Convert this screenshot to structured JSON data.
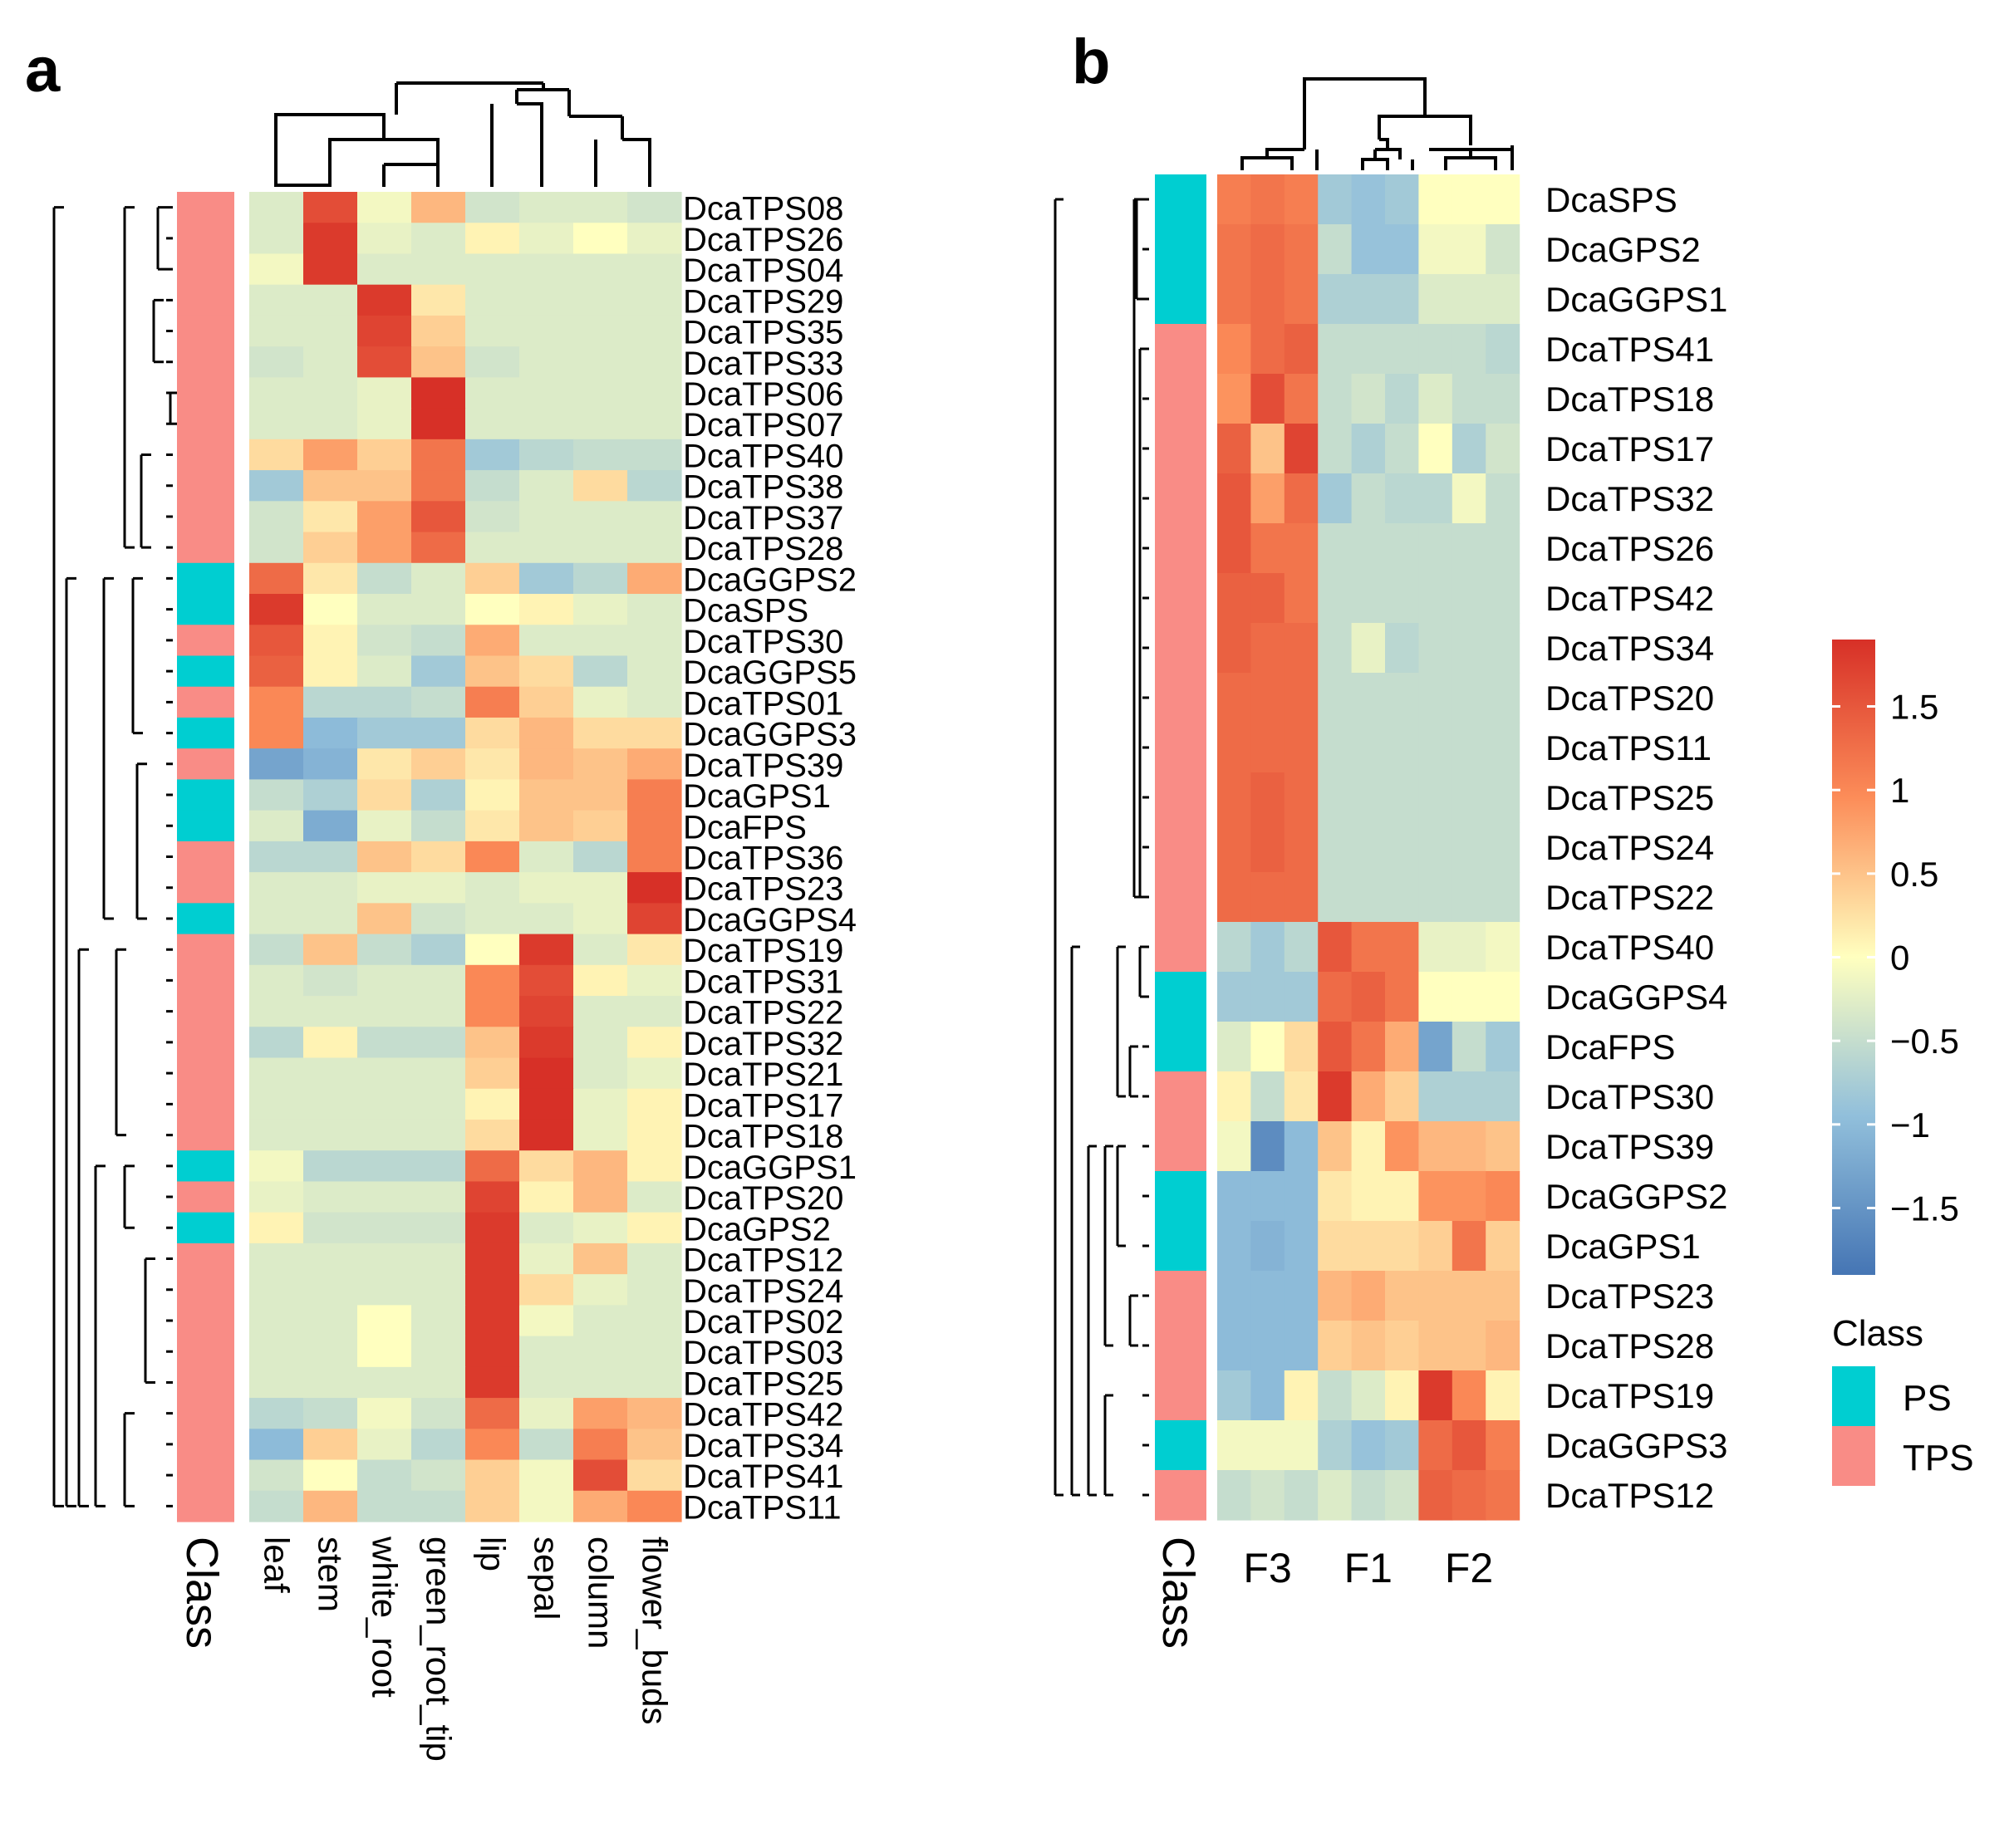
{
  "panels": {
    "a": {
      "letter": "a"
    },
    "b": {
      "letter": "b"
    }
  },
  "legend": {
    "class_title": "Class",
    "entries": [
      {
        "label": "PS",
        "color": "#00CED1"
      },
      {
        "label": "TPS",
        "color": "#F98C86"
      }
    ],
    "colorbar_ticks": [
      "1.5",
      "1",
      "0.5",
      "0",
      "−0.5",
      "−1",
      "−1.5"
    ],
    "colorbar_tick_values": [
      1.5,
      1,
      0.5,
      0,
      -0.5,
      -1,
      -1.5
    ],
    "colorbar_range": [
      -1.9,
      1.9
    ],
    "colors": {
      "low": "#4575B4",
      "mid": "#FFFFBF",
      "high": "#D73027"
    }
  },
  "chart_data": [
    {
      "type": "heatmap",
      "panel": "a",
      "class_label": "Class",
      "columns": [
        "leaf",
        "stem",
        "white_root",
        "green_root_tip",
        "lip",
        "sepal",
        "column",
        "flower_buds"
      ],
      "rows": [
        "DcaTPS08",
        "DcaTPS26",
        "DcaTPS04",
        "DcaTPS29",
        "DcaTPS35",
        "DcaTPS33",
        "DcaTPS06",
        "DcaTPS07",
        "DcaTPS40",
        "DcaTPS38",
        "DcaTPS37",
        "DcaTPS28",
        "DcaGGPS2",
        "DcaSPS",
        "DcaTPS30",
        "DcaGGPS5",
        "DcaTPS01",
        "DcaGGPS3",
        "DcaTPS39",
        "DcaGPS1",
        "DcaFPS",
        "DcaTPS36",
        "DcaTPS23",
        "DcaGGPS4",
        "DcaTPS19",
        "DcaTPS31",
        "DcaTPS22",
        "DcaTPS32",
        "DcaTPS21",
        "DcaTPS17",
        "DcaTPS18",
        "DcaGGPS1",
        "DcaTPS20",
        "DcaGPS2",
        "DcaTPS12",
        "DcaTPS24",
        "DcaTPS02",
        "DcaTPS03",
        "DcaTPS25",
        "DcaTPS42",
        "DcaTPS34",
        "DcaTPS41",
        "DcaTPS11"
      ],
      "row_class": [
        "TPS",
        "TPS",
        "TPS",
        "TPS",
        "TPS",
        "TPS",
        "TPS",
        "TPS",
        "TPS",
        "TPS",
        "TPS",
        "TPS",
        "PS",
        "PS",
        "TPS",
        "PS",
        "TPS",
        "PS",
        "TPS",
        "PS",
        "PS",
        "TPS",
        "TPS",
        "PS",
        "TPS",
        "TPS",
        "TPS",
        "TPS",
        "TPS",
        "TPS",
        "TPS",
        "PS",
        "TPS",
        "PS",
        "TPS",
        "TPS",
        "TPS",
        "TPS",
        "TPS",
        "TPS",
        "TPS",
        "TPS",
        "TPS"
      ],
      "values": [
        [
          -0.3,
          1.6,
          -0.1,
          0.6,
          -0.4,
          -0.3,
          -0.3,
          -0.4
        ],
        [
          -0.3,
          1.8,
          -0.2,
          -0.3,
          0.1,
          -0.2,
          0.0,
          -0.2
        ],
        [
          -0.1,
          1.8,
          -0.3,
          -0.3,
          -0.3,
          -0.3,
          -0.3,
          -0.3
        ],
        [
          -0.3,
          -0.3,
          1.8,
          0.2,
          -0.3,
          -0.3,
          -0.3,
          -0.3
        ],
        [
          -0.3,
          -0.3,
          1.7,
          0.4,
          -0.3,
          -0.3,
          -0.3,
          -0.3
        ],
        [
          -0.4,
          -0.3,
          1.6,
          0.5,
          -0.4,
          -0.3,
          -0.3,
          -0.3
        ],
        [
          -0.3,
          -0.3,
          -0.2,
          1.9,
          -0.3,
          -0.3,
          -0.3,
          -0.3
        ],
        [
          -0.3,
          -0.3,
          -0.2,
          1.9,
          -0.3,
          -0.3,
          -0.3,
          -0.3
        ],
        [
          0.3,
          0.8,
          0.4,
          1.2,
          -0.8,
          -0.6,
          -0.5,
          -0.5
        ],
        [
          -0.8,
          0.5,
          0.5,
          1.2,
          -0.5,
          -0.3,
          0.3,
          -0.6
        ],
        [
          -0.4,
          0.2,
          0.8,
          1.5,
          -0.4,
          -0.3,
          -0.3,
          -0.3
        ],
        [
          -0.4,
          0.4,
          0.8,
          1.3,
          -0.3,
          -0.3,
          -0.3,
          -0.3
        ],
        [
          1.3,
          0.2,
          -0.5,
          -0.3,
          0.4,
          -0.8,
          -0.6,
          0.7
        ],
        [
          1.8,
          0.0,
          -0.3,
          -0.3,
          0.0,
          0.1,
          -0.2,
          -0.3
        ],
        [
          1.5,
          0.1,
          -0.4,
          -0.5,
          0.7,
          -0.3,
          -0.3,
          -0.3
        ],
        [
          1.4,
          0.1,
          -0.3,
          -0.8,
          0.5,
          0.3,
          -0.6,
          -0.3
        ],
        [
          1.0,
          -0.6,
          -0.6,
          -0.5,
          1.1,
          0.4,
          -0.2,
          -0.3
        ],
        [
          1.0,
          -1.0,
          -0.8,
          -0.8,
          0.3,
          0.6,
          0.3,
          0.3
        ],
        [
          -1.3,
          -1.1,
          0.2,
          0.4,
          0.2,
          0.6,
          0.5,
          0.7
        ],
        [
          -0.5,
          -0.7,
          0.3,
          -0.7,
          0.1,
          0.5,
          0.5,
          1.1
        ],
        [
          -0.3,
          -1.2,
          -0.2,
          -0.5,
          0.2,
          0.5,
          0.4,
          1.1
        ],
        [
          -0.6,
          -0.6,
          0.5,
          0.3,
          1.0,
          -0.3,
          -0.6,
          1.1
        ],
        [
          -0.3,
          -0.3,
          -0.2,
          -0.2,
          -0.3,
          -0.2,
          -0.2,
          1.9
        ],
        [
          -0.3,
          -0.3,
          0.5,
          -0.4,
          -0.3,
          -0.3,
          -0.2,
          1.7
        ],
        [
          -0.5,
          0.5,
          -0.5,
          -0.7,
          0.0,
          1.8,
          -0.3,
          0.2
        ],
        [
          -0.3,
          -0.4,
          -0.3,
          -0.3,
          1.0,
          1.6,
          0.1,
          -0.2
        ],
        [
          -0.3,
          -0.3,
          -0.3,
          -0.3,
          1.0,
          1.7,
          -0.3,
          -0.3
        ],
        [
          -0.6,
          0.1,
          -0.5,
          -0.5,
          0.5,
          1.8,
          -0.3,
          0.1
        ],
        [
          -0.3,
          -0.3,
          -0.3,
          -0.3,
          0.4,
          1.9,
          -0.3,
          -0.2
        ],
        [
          -0.3,
          -0.3,
          -0.3,
          -0.3,
          0.1,
          1.9,
          -0.2,
          0.1
        ],
        [
          -0.3,
          -0.3,
          -0.3,
          -0.3,
          0.3,
          1.9,
          -0.2,
          0.1
        ],
        [
          -0.1,
          -0.6,
          -0.6,
          -0.6,
          1.3,
          0.3,
          0.6,
          0.1
        ],
        [
          -0.2,
          -0.3,
          -0.3,
          -0.3,
          1.7,
          0.1,
          0.6,
          -0.3
        ],
        [
          0.1,
          -0.4,
          -0.4,
          -0.4,
          1.8,
          -0.3,
          -0.2,
          0.1
        ],
        [
          -0.3,
          -0.3,
          -0.3,
          -0.3,
          1.8,
          -0.2,
          0.5,
          -0.3
        ],
        [
          -0.3,
          -0.3,
          -0.3,
          -0.3,
          1.8,
          0.3,
          -0.2,
          -0.3
        ],
        [
          -0.3,
          -0.3,
          0.0,
          -0.3,
          1.8,
          -0.1,
          -0.3,
          -0.3
        ],
        [
          -0.3,
          -0.3,
          0.0,
          -0.3,
          1.8,
          -0.3,
          -0.3,
          -0.3
        ],
        [
          -0.3,
          -0.3,
          -0.3,
          -0.3,
          1.8,
          -0.3,
          -0.3,
          -0.3
        ],
        [
          -0.6,
          -0.5,
          -0.1,
          -0.4,
          1.3,
          -0.2,
          0.8,
          0.6
        ],
        [
          -1.0,
          0.4,
          -0.2,
          -0.6,
          1.0,
          -0.5,
          1.1,
          0.5
        ],
        [
          -0.4,
          0.0,
          -0.5,
          -0.4,
          0.4,
          -0.1,
          1.6,
          0.3
        ],
        [
          -0.5,
          0.6,
          -0.5,
          -0.5,
          0.4,
          -0.1,
          0.7,
          1.0
        ]
      ]
    },
    {
      "type": "heatmap",
      "panel": "b",
      "class_label": "Class",
      "column_groups": [
        "F3",
        "F1",
        "F2"
      ],
      "rows": [
        "DcaSPS",
        "DcaGPS2",
        "DcaGGPS1",
        "DcaTPS41",
        "DcaTPS18",
        "DcaTPS17",
        "DcaTPS32",
        "DcaTPS26",
        "DcaTPS42",
        "DcaTPS34",
        "DcaTPS20",
        "DcaTPS11",
        "DcaTPS25",
        "DcaTPS24",
        "DcaTPS22",
        "DcaTPS40",
        "DcaGGPS4",
        "DcaFPS",
        "DcaTPS30",
        "DcaTPS39",
        "DcaGGPS2",
        "DcaGPS1",
        "DcaTPS23",
        "DcaTPS28",
        "DcaTPS19",
        "DcaGGPS3",
        "DcaTPS12"
      ],
      "row_class": [
        "PS",
        "PS",
        "PS",
        "TPS",
        "TPS",
        "TPS",
        "TPS",
        "TPS",
        "TPS",
        "TPS",
        "TPS",
        "TPS",
        "TPS",
        "TPS",
        "TPS",
        "TPS",
        "PS",
        "PS",
        "TPS",
        "TPS",
        "PS",
        "PS",
        "TPS",
        "TPS",
        "TPS",
        "PS",
        "TPS"
      ],
      "values": [
        [
          1.1,
          1.2,
          1.1,
          -0.8,
          -0.9,
          -0.8,
          0.0,
          0.0,
          0.0
        ],
        [
          1.2,
          1.3,
          1.2,
          -0.5,
          -0.9,
          -0.9,
          -0.1,
          -0.1,
          -0.4
        ],
        [
          1.2,
          1.3,
          1.2,
          -0.7,
          -0.7,
          -0.7,
          -0.3,
          -0.3,
          -0.3
        ],
        [
          1.0,
          1.3,
          1.4,
          -0.5,
          -0.5,
          -0.5,
          -0.5,
          -0.5,
          -0.6
        ],
        [
          0.9,
          1.6,
          1.2,
          -0.5,
          -0.4,
          -0.6,
          -0.3,
          -0.5,
          -0.5
        ],
        [
          1.4,
          0.5,
          1.7,
          -0.5,
          -0.7,
          -0.5,
          0.0,
          -0.7,
          -0.4
        ],
        [
          1.5,
          0.8,
          1.3,
          -0.8,
          -0.5,
          -0.6,
          -0.6,
          -0.1,
          -0.5
        ],
        [
          1.5,
          1.2,
          1.2,
          -0.5,
          -0.5,
          -0.5,
          -0.5,
          -0.5,
          -0.5
        ],
        [
          1.4,
          1.4,
          1.2,
          -0.5,
          -0.5,
          -0.5,
          -0.5,
          -0.5,
          -0.5
        ],
        [
          1.4,
          1.3,
          1.3,
          -0.5,
          -0.2,
          -0.6,
          -0.5,
          -0.5,
          -0.5
        ],
        [
          1.3,
          1.3,
          1.3,
          -0.5,
          -0.5,
          -0.5,
          -0.5,
          -0.5,
          -0.5
        ],
        [
          1.3,
          1.3,
          1.3,
          -0.5,
          -0.5,
          -0.5,
          -0.5,
          -0.5,
          -0.5
        ],
        [
          1.3,
          1.4,
          1.3,
          -0.5,
          -0.5,
          -0.5,
          -0.5,
          -0.5,
          -0.5
        ],
        [
          1.3,
          1.4,
          1.3,
          -0.5,
          -0.5,
          -0.5,
          -0.5,
          -0.5,
          -0.5
        ],
        [
          1.3,
          1.3,
          1.3,
          -0.5,
          -0.5,
          -0.5,
          -0.5,
          -0.5,
          -0.5
        ],
        [
          -0.6,
          -0.8,
          -0.6,
          1.5,
          1.2,
          1.2,
          -0.2,
          -0.2,
          -0.1
        ],
        [
          -0.8,
          -0.8,
          -0.8,
          1.3,
          1.4,
          1.2,
          0.0,
          0.0,
          0.0
        ],
        [
          -0.3,
          0.0,
          0.3,
          1.5,
          1.2,
          0.7,
          -1.3,
          -0.5,
          -0.8
        ],
        [
          0.1,
          -0.5,
          0.2,
          1.8,
          0.7,
          0.4,
          -0.7,
          -0.7,
          -0.7
        ],
        [
          -0.1,
          -1.6,
          -1.0,
          0.5,
          0.1,
          0.9,
          0.6,
          0.6,
          0.5
        ],
        [
          -1.0,
          -1.0,
          -1.0,
          0.2,
          0.1,
          0.1,
          0.9,
          0.9,
          1.0
        ],
        [
          -1.0,
          -1.1,
          -1.0,
          0.3,
          0.3,
          0.3,
          0.4,
          1.2,
          0.4
        ],
        [
          -1.0,
          -1.0,
          -1.0,
          0.6,
          0.7,
          0.5,
          0.5,
          0.5,
          0.5
        ],
        [
          -1.0,
          -1.0,
          -1.0,
          0.4,
          0.5,
          0.4,
          0.5,
          0.5,
          0.6
        ],
        [
          -0.8,
          -1.0,
          0.1,
          -0.5,
          -0.3,
          0.1,
          1.8,
          1.0,
          0.1
        ],
        [
          -0.1,
          -0.1,
          -0.1,
          -0.7,
          -0.9,
          -0.8,
          1.3,
          1.5,
          1.1
        ],
        [
          -0.5,
          -0.4,
          -0.5,
          -0.3,
          -0.5,
          -0.4,
          1.4,
          1.3,
          1.2
        ]
      ]
    }
  ]
}
